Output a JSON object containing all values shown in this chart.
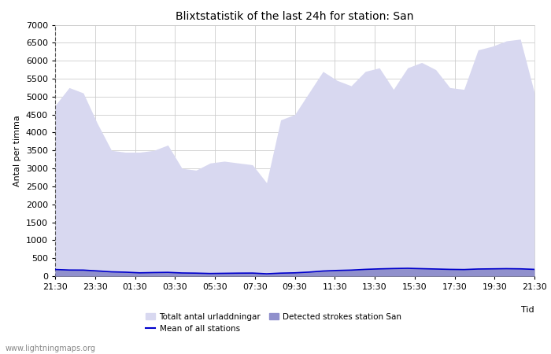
{
  "title": "Blixtstatistik of the last 24h for station: San",
  "xlabel": "Tid",
  "ylabel": "Antal per timma",
  "ylim": [
    0,
    7000
  ],
  "yticks": [
    0,
    500,
    1000,
    1500,
    2000,
    2500,
    3000,
    3500,
    4000,
    4500,
    5000,
    5500,
    6000,
    6500,
    7000
  ],
  "time_labels": [
    "21:30",
    "23:30",
    "01:30",
    "03:30",
    "05:30",
    "07:30",
    "09:30",
    "11:30",
    "13:30",
    "15:30",
    "17:30",
    "19:30",
    "21:30"
  ],
  "watermark": "www.lightningmaps.org",
  "legend_items": [
    {
      "label": "Totalt antal urladdningar",
      "color": "#d8d8f0",
      "type": "fill"
    },
    {
      "label": "Detected strokes station San",
      "color": "#9090cc",
      "type": "fill"
    },
    {
      "label": "Mean of all stations",
      "color": "#0000cc",
      "type": "line"
    }
  ],
  "total_values": [
    4750,
    5250,
    5100,
    4250,
    3500,
    3450,
    3450,
    3500,
    3650,
    3000,
    2950,
    3150,
    3200,
    3150,
    3100,
    2600,
    4350,
    4500,
    5100,
    5700,
    5450,
    5300,
    5700,
    5800,
    5200,
    5800,
    5950,
    5750,
    5250,
    5200,
    6300,
    6400,
    6550,
    6600,
    5100
  ],
  "detected_values": [
    200,
    185,
    180,
    155,
    130,
    120,
    100,
    110,
    110,
    95,
    90,
    80,
    85,
    90,
    90,
    70,
    90,
    100,
    120,
    150,
    165,
    175,
    195,
    210,
    220,
    225,
    215,
    205,
    195,
    190,
    205,
    210,
    215,
    210,
    195
  ],
  "mean_values": [
    185,
    170,
    168,
    145,
    120,
    110,
    92,
    100,
    105,
    88,
    83,
    73,
    78,
    83,
    85,
    65,
    83,
    92,
    112,
    142,
    158,
    168,
    188,
    202,
    212,
    218,
    208,
    198,
    188,
    183,
    198,
    203,
    208,
    203,
    188
  ],
  "background_color": "#ffffff",
  "plot_bg_color": "#ffffff",
  "grid_color": "#cccccc",
  "fill_total_color": "#d8d8f0",
  "fill_detected_color": "#9090cc",
  "mean_line_color": "#0000cc",
  "title_fontsize": 10,
  "axis_fontsize": 8,
  "tick_fontsize": 8
}
